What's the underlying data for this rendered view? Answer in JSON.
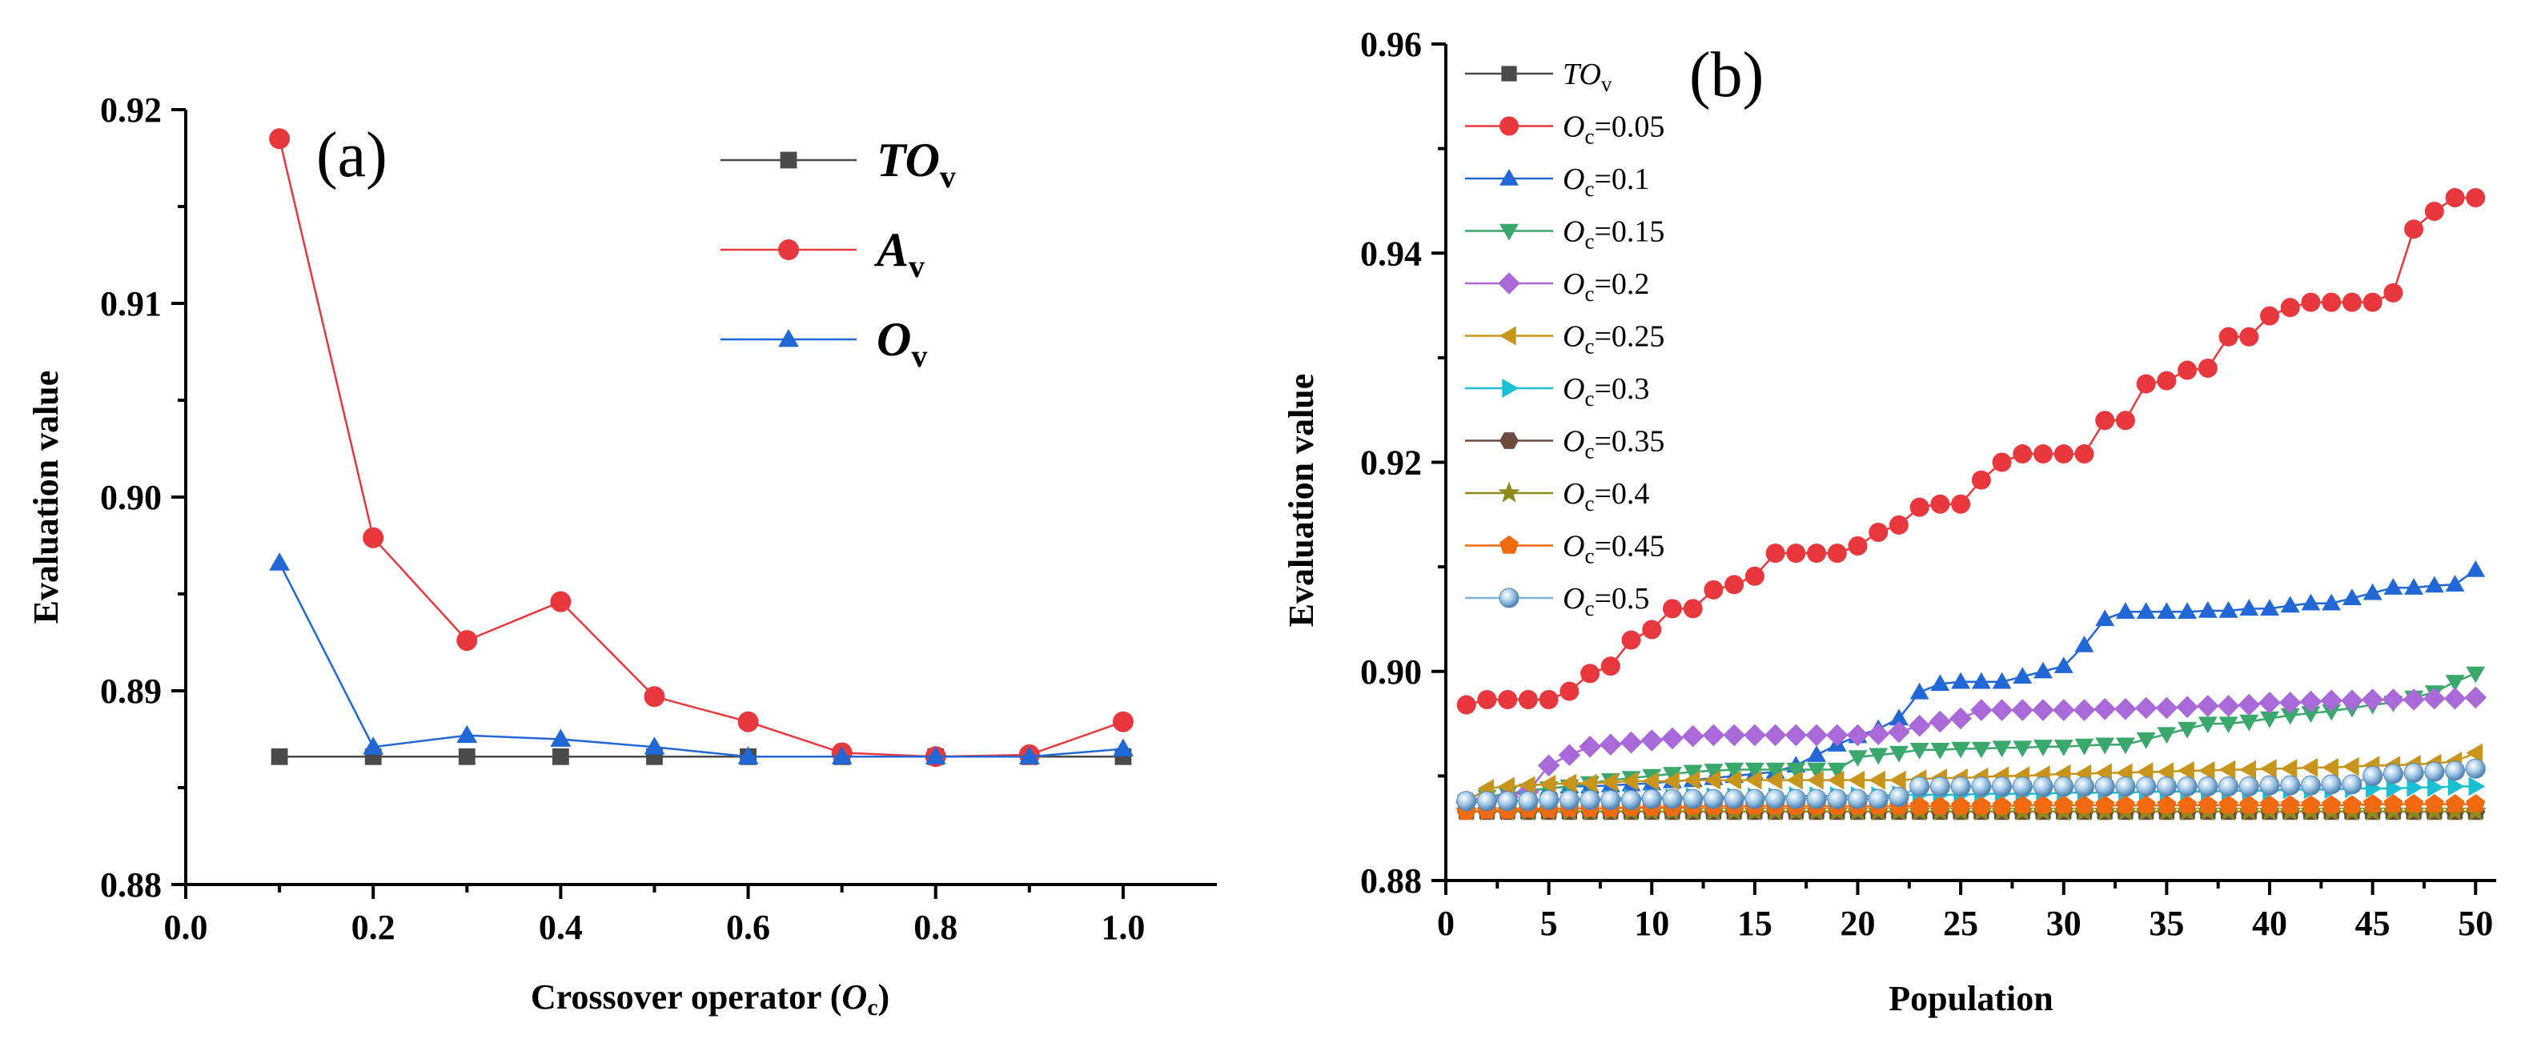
{
  "chart_data": [
    {
      "type": "line",
      "panel_label": "(a)",
      "xlabel": "Crossover operator (",
      "xlabel_var": "O",
      "xlabel_sub": "c",
      "xlabel_close": ")",
      "ylabel": "Evaluation value",
      "xlim": [
        0.0,
        1.1
      ],
      "ylim": [
        0.88,
        0.92
      ],
      "x_ticks": [
        "0.0",
        "0.2",
        "0.4",
        "0.6",
        "0.8",
        "1.0"
      ],
      "y_ticks": [
        "0.88",
        "0.89",
        "0.90",
        "0.91",
        "0.92"
      ],
      "x": [
        0.1,
        0.2,
        0.3,
        0.4,
        0.5,
        0.6,
        0.7,
        0.8,
        0.9,
        1.0
      ],
      "series": [
        {
          "name": "TO",
          "sub": "v",
          "color": "#4a4a4a",
          "marker": "square",
          "values": [
            0.8866,
            0.8866,
            0.8866,
            0.8866,
            0.8866,
            0.8866,
            0.8866,
            0.8866,
            0.8866,
            0.8866
          ]
        },
        {
          "name": "A",
          "sub": "v",
          "color": "#e8383d",
          "marker": "circle",
          "values": [
            0.9185,
            0.8979,
            0.8926,
            0.8946,
            0.8897,
            0.8884,
            0.8868,
            0.8866,
            0.8867,
            0.8884
          ]
        },
        {
          "name": "O",
          "sub": "v",
          "color": "#2267d6",
          "marker": "triangle-up",
          "values": [
            0.8966,
            0.8871,
            0.8877,
            0.8875,
            0.8871,
            0.8866,
            0.8866,
            0.8866,
            0.8866,
            0.887
          ]
        }
      ]
    },
    {
      "type": "line",
      "panel_label": "(b)",
      "xlabel": "Population",
      "ylabel": "Evaluation value",
      "xlim": [
        0,
        51
      ],
      "ylim": [
        0.88,
        0.96
      ],
      "x_ticks": [
        "0",
        "5",
        "10",
        "15",
        "20",
        "25",
        "30",
        "35",
        "40",
        "45",
        "50"
      ],
      "y_ticks": [
        "0.88",
        "0.90",
        "0.92",
        "0.94",
        "0.96"
      ],
      "series": [
        {
          "name": "TO",
          "sub": "v",
          "eq": "",
          "color": "#4a4a4a",
          "marker": "square",
          "values": [
            0.8866,
            0.8866,
            0.8866,
            0.8866,
            0.8866,
            0.8866,
            0.8866,
            0.8866,
            0.8866,
            0.8866,
            0.8866,
            0.8866,
            0.8866,
            0.8866,
            0.8866,
            0.8866,
            0.8866,
            0.8866,
            0.8866,
            0.8866,
            0.8866,
            0.8866,
            0.8866,
            0.8866,
            0.8866,
            0.8866,
            0.8866,
            0.8866,
            0.8866,
            0.8866,
            0.8866,
            0.8866,
            0.8866,
            0.8866,
            0.8866,
            0.8866,
            0.8866,
            0.8866,
            0.8866,
            0.8866,
            0.8866,
            0.8866,
            0.8866,
            0.8866,
            0.8866,
            0.8866,
            0.8866,
            0.8866,
            0.8866,
            0.8866
          ]
        },
        {
          "name": "O",
          "sub": "c",
          "eq": "=0.05",
          "color": "#e8383d",
          "marker": "circle",
          "values": [
            0.8968,
            0.8973,
            0.8973,
            0.8973,
            0.8973,
            0.8981,
            0.8998,
            0.9005,
            0.903,
            0.904,
            0.906,
            0.906,
            0.9078,
            0.9083,
            0.9091,
            0.9113,
            0.9113,
            0.9113,
            0.9113,
            0.912,
            0.9133,
            0.914,
            0.9157,
            0.916,
            0.916,
            0.9183,
            0.92,
            0.9208,
            0.9208,
            0.9208,
            0.9208,
            0.924,
            0.924,
            0.9275,
            0.9278,
            0.9288,
            0.929,
            0.932,
            0.932,
            0.934,
            0.9348,
            0.9353,
            0.9353,
            0.9353,
            0.9353,
            0.9362,
            0.9423,
            0.944,
            0.9453,
            0.9453
          ]
        },
        {
          "name": "O",
          "sub": "c",
          "eq": "=0.1",
          "color": "#2267d6",
          "marker": "triangle-up",
          "values": [
            0.8875,
            0.888,
            0.8883,
            0.8886,
            0.8888,
            0.889,
            0.889,
            0.8891,
            0.8892,
            0.8893,
            0.8895,
            0.8896,
            0.8898,
            0.89,
            0.8902,
            0.8904,
            0.891,
            0.892,
            0.893,
            0.8938,
            0.8945,
            0.8955,
            0.898,
            0.8988,
            0.899,
            0.899,
            0.899,
            0.8995,
            0.9,
            0.9005,
            0.9025,
            0.905,
            0.9057,
            0.9057,
            0.9057,
            0.9057,
            0.9058,
            0.9058,
            0.906,
            0.906,
            0.9063,
            0.9065,
            0.9065,
            0.907,
            0.9075,
            0.908,
            0.908,
            0.9082,
            0.9083,
            0.9097
          ]
        },
        {
          "name": "O",
          "sub": "c",
          "eq": "=0.15",
          "color": "#3aa76d",
          "marker": "triangle-down",
          "values": [
            0.8875,
            0.888,
            0.8883,
            0.8886,
            0.8888,
            0.889,
            0.8893,
            0.8896,
            0.8898,
            0.89,
            0.8902,
            0.8904,
            0.8905,
            0.8906,
            0.8906,
            0.8906,
            0.8906,
            0.8906,
            0.8906,
            0.8918,
            0.892,
            0.8922,
            0.8925,
            0.8925,
            0.8926,
            0.8926,
            0.8927,
            0.8927,
            0.8928,
            0.8928,
            0.8929,
            0.893,
            0.893,
            0.8935,
            0.894,
            0.8945,
            0.895,
            0.895,
            0.8952,
            0.8955,
            0.8958,
            0.896,
            0.8962,
            0.8965,
            0.8968,
            0.897,
            0.8975,
            0.898,
            0.899,
            0.8998
          ]
        },
        {
          "name": "O",
          "sub": "c",
          "eq": "=0.2",
          "color": "#a969d8",
          "marker": "diamond",
          "values": [
            0.8875,
            0.8878,
            0.888,
            0.8885,
            0.891,
            0.892,
            0.8928,
            0.893,
            0.8932,
            0.8934,
            0.8936,
            0.8938,
            0.8939,
            0.8939,
            0.8939,
            0.8939,
            0.8939,
            0.8939,
            0.8939,
            0.8939,
            0.894,
            0.8942,
            0.8948,
            0.8952,
            0.8955,
            0.8963,
            0.8963,
            0.8963,
            0.8963,
            0.8963,
            0.8963,
            0.8964,
            0.8964,
            0.8965,
            0.8965,
            0.8966,
            0.8967,
            0.8967,
            0.8968,
            0.897,
            0.897,
            0.8971,
            0.8972,
            0.8972,
            0.8973,
            0.8973,
            0.8973,
            0.8974,
            0.8974,
            0.8975
          ]
        },
        {
          "name": "O",
          "sub": "c",
          "eq": "=0.25",
          "color": "#c8951c",
          "marker": "triangle-left",
          "values": [
            0.8875,
            0.8888,
            0.889,
            0.8891,
            0.8892,
            0.8893,
            0.8893,
            0.8894,
            0.8895,
            0.8895,
            0.8895,
            0.8896,
            0.8896,
            0.8896,
            0.8896,
            0.8896,
            0.8896,
            0.8896,
            0.8896,
            0.8896,
            0.8896,
            0.8896,
            0.8897,
            0.8898,
            0.8898,
            0.8899,
            0.89,
            0.89,
            0.8901,
            0.8902,
            0.8902,
            0.8903,
            0.8903,
            0.8904,
            0.8904,
            0.8905,
            0.8905,
            0.8906,
            0.8906,
            0.8907,
            0.8907,
            0.8908,
            0.8908,
            0.8909,
            0.891,
            0.891,
            0.8911,
            0.8912,
            0.8914,
            0.8922
          ]
        },
        {
          "name": "O",
          "sub": "c",
          "eq": "=0.3",
          "color": "#1bbfd3",
          "marker": "triangle-right",
          "values": [
            0.8875,
            0.8876,
            0.8876,
            0.8877,
            0.8877,
            0.8878,
            0.8878,
            0.8878,
            0.8879,
            0.8879,
            0.8879,
            0.888,
            0.888,
            0.888,
            0.888,
            0.888,
            0.8881,
            0.8881,
            0.8881,
            0.8881,
            0.8881,
            0.8882,
            0.8882,
            0.8882,
            0.8882,
            0.8883,
            0.8883,
            0.8883,
            0.8883,
            0.8884,
            0.8884,
            0.8884,
            0.8884,
            0.8885,
            0.8885,
            0.8885,
            0.8885,
            0.8886,
            0.8886,
            0.8886,
            0.8887,
            0.8887,
            0.8887,
            0.8888,
            0.8888,
            0.8888,
            0.8889,
            0.8889,
            0.889,
            0.889
          ]
        },
        {
          "name": "O",
          "sub": "c",
          "eq": "=0.35",
          "color": "#6b4b3e",
          "marker": "hexagon",
          "values": [
            0.8866,
            0.8866,
            0.8866,
            0.8866,
            0.8866,
            0.8866,
            0.8866,
            0.8866,
            0.8866,
            0.8866,
            0.8866,
            0.8866,
            0.8866,
            0.8866,
            0.8866,
            0.8866,
            0.8866,
            0.8866,
            0.8866,
            0.8866,
            0.8866,
            0.8866,
            0.8866,
            0.8866,
            0.8866,
            0.8866,
            0.8866,
            0.8866,
            0.8866,
            0.8866,
            0.8866,
            0.8866,
            0.8866,
            0.8866,
            0.8866,
            0.8866,
            0.8866,
            0.8866,
            0.8866,
            0.8866,
            0.8866,
            0.8866,
            0.8866,
            0.8866,
            0.8866,
            0.8866,
            0.8866,
            0.8866,
            0.8866,
            0.8866
          ]
        },
        {
          "name": "O",
          "sub": "c",
          "eq": "=0.4",
          "color": "#8f8a1a",
          "marker": "star",
          "values": [
            0.8866,
            0.8866,
            0.8866,
            0.8866,
            0.8866,
            0.8866,
            0.8866,
            0.8866,
            0.8866,
            0.8866,
            0.8866,
            0.8866,
            0.8866,
            0.8866,
            0.8866,
            0.8866,
            0.8866,
            0.8866,
            0.8866,
            0.8866,
            0.8866,
            0.8866,
            0.8866,
            0.8866,
            0.8866,
            0.8866,
            0.8866,
            0.8866,
            0.8866,
            0.8866,
            0.8866,
            0.8866,
            0.8866,
            0.8866,
            0.8866,
            0.8866,
            0.8866,
            0.8866,
            0.8866,
            0.8866,
            0.8866,
            0.8866,
            0.8866,
            0.8866,
            0.8866,
            0.8866,
            0.8866,
            0.8866,
            0.8866,
            0.8866
          ]
        },
        {
          "name": "O",
          "sub": "c",
          "eq": "=0.45",
          "color": "#f26a0f",
          "marker": "pentagon",
          "values": [
            0.8866,
            0.8867,
            0.8867,
            0.8868,
            0.8868,
            0.8869,
            0.8869,
            0.8869,
            0.887,
            0.887,
            0.887,
            0.8871,
            0.8871,
            0.8871,
            0.8871,
            0.8871,
            0.8871,
            0.8871,
            0.8871,
            0.8871,
            0.8871,
            0.8871,
            0.8871,
            0.8871,
            0.8871,
            0.8871,
            0.8871,
            0.8872,
            0.8872,
            0.8872,
            0.8872,
            0.8872,
            0.8872,
            0.8872,
            0.8872,
            0.8872,
            0.8872,
            0.8872,
            0.8872,
            0.8872,
            0.8872,
            0.8872,
            0.8872,
            0.8872,
            0.8873,
            0.8873,
            0.8873,
            0.8873,
            0.8873,
            0.8873
          ]
        },
        {
          "name": "O",
          "sub": "c",
          "eq": "=0.5",
          "color": "#7fb0dc",
          "marker": "sphere",
          "values": [
            0.8876,
            0.8876,
            0.8876,
            0.8876,
            0.8877,
            0.8877,
            0.8877,
            0.8877,
            0.8877,
            0.8878,
            0.8878,
            0.8878,
            0.8878,
            0.8878,
            0.8878,
            0.8878,
            0.8878,
            0.8878,
            0.8878,
            0.8878,
            0.8878,
            0.888,
            0.889,
            0.889,
            0.889,
            0.889,
            0.889,
            0.889,
            0.889,
            0.889,
            0.889,
            0.889,
            0.889,
            0.889,
            0.889,
            0.889,
            0.889,
            0.889,
            0.889,
            0.8891,
            0.8891,
            0.8891,
            0.8892,
            0.8892,
            0.89,
            0.8902,
            0.8903,
            0.8904,
            0.8905,
            0.8907
          ]
        }
      ]
    }
  ]
}
